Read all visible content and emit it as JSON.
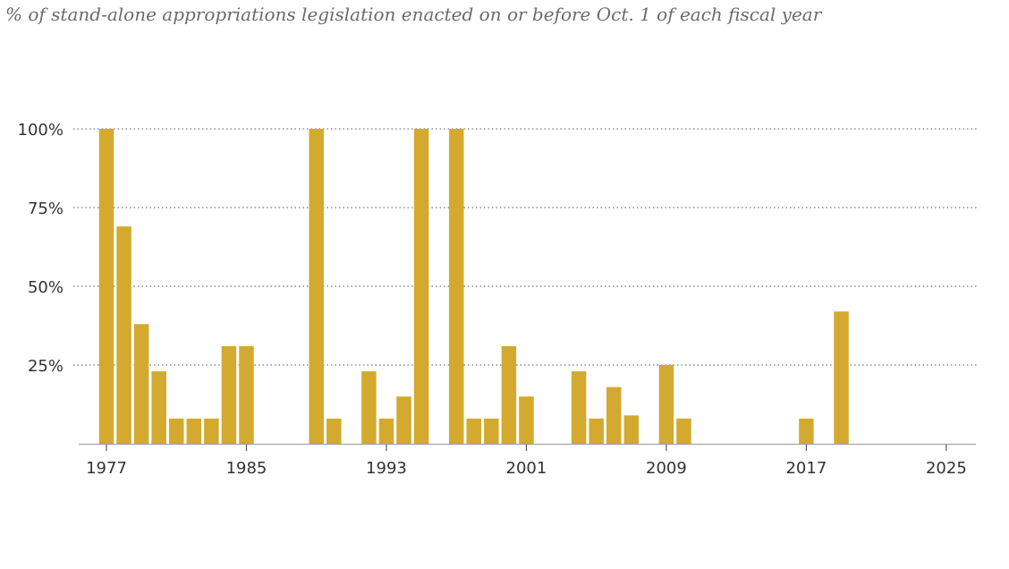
{
  "chart_data": {
    "type": "bar",
    "title": "",
    "subtitle": "% of stand-alone appropriations legislation enacted on or before Oct. 1 of each fiscal year",
    "xlabel": "",
    "ylabel": "",
    "ylim": [
      0,
      100
    ],
    "grid": true,
    "bar_color": "#d3aa2f",
    "grid_color": "#777777",
    "axis_color": "#999999",
    "y_ticks": [
      {
        "value": 25,
        "label": "25%"
      },
      {
        "value": 50,
        "label": "50%"
      },
      {
        "value": 75,
        "label": "75%"
      },
      {
        "value": 100,
        "label": "100%"
      }
    ],
    "x_ticks": [
      {
        "value": 1977,
        "label": "1977"
      },
      {
        "value": 1985,
        "label": "1985"
      },
      {
        "value": 1993,
        "label": "1993"
      },
      {
        "value": 2001,
        "label": "2001"
      },
      {
        "value": 2009,
        "label": "2009"
      },
      {
        "value": 2017,
        "label": "2017"
      },
      {
        "value": 2025,
        "label": "2025"
      }
    ],
    "x": [
      1977,
      1978,
      1979,
      1980,
      1981,
      1982,
      1983,
      1984,
      1985,
      1986,
      1987,
      1988,
      1989,
      1990,
      1991,
      1992,
      1993,
      1994,
      1995,
      1996,
      1997,
      1998,
      1999,
      2000,
      2001,
      2002,
      2003,
      2004,
      2005,
      2006,
      2007,
      2008,
      2009,
      2010,
      2011,
      2012,
      2013,
      2014,
      2015,
      2016,
      2017,
      2018,
      2019,
      2020,
      2021,
      2022,
      2023,
      2024,
      2025
    ],
    "values": [
      100,
      69,
      38,
      23,
      8,
      8,
      8,
      31,
      31,
      0,
      0,
      0,
      100,
      8,
      0,
      23,
      8,
      15,
      100,
      0,
      100,
      8,
      8,
      31,
      15,
      0,
      0,
      23,
      8,
      18,
      9,
      0,
      25,
      8,
      0,
      0,
      0,
      0,
      0,
      0,
      8,
      0,
      42,
      0,
      0,
      0,
      0,
      0,
      0
    ]
  }
}
